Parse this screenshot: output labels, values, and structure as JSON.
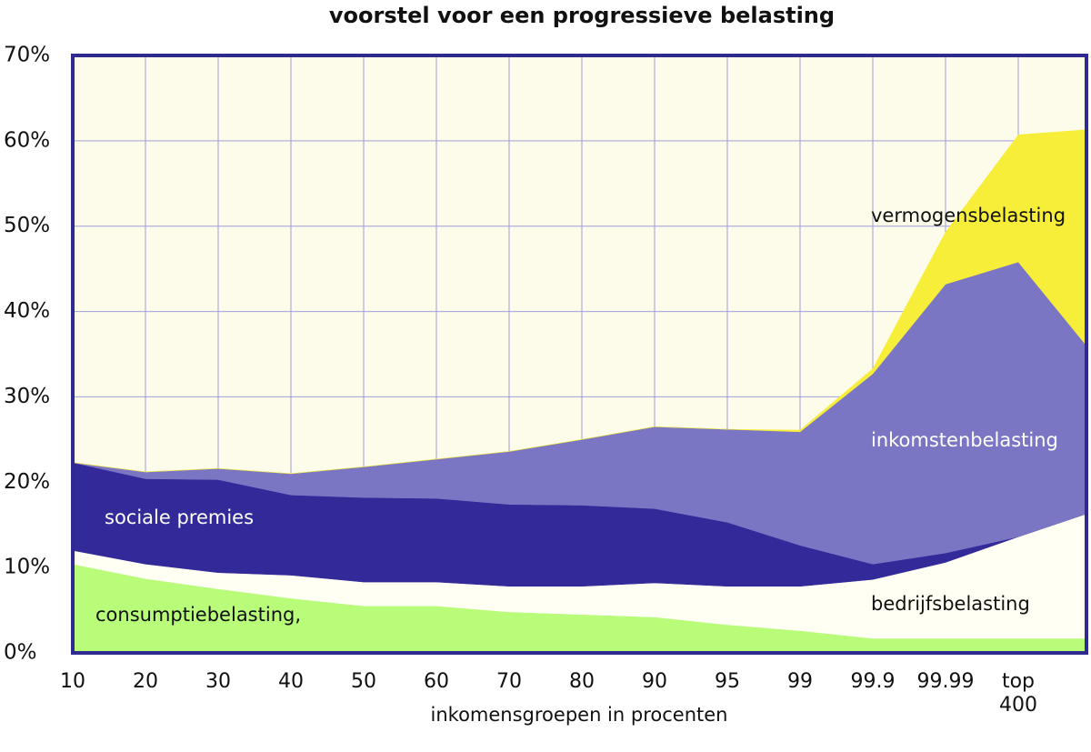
{
  "chart_data": {
    "type": "stacked_area",
    "title": "voorstel voor een progressieve belasting",
    "xlabel": "inkomensgroepen in procenten",
    "categories": [
      "10",
      "20",
      "30",
      "40",
      "50",
      "60",
      "70",
      "80",
      "90",
      "95",
      "99",
      "99.9",
      "99.99",
      "top 400",
      null
    ],
    "series": [
      {
        "name": "consumptiebelasting,",
        "color": "#b8fc7a",
        "values": [
          10.4,
          8.7,
          7.5,
          6.4,
          5.5,
          5.5,
          4.8,
          4.5,
          4.2,
          3.3,
          2.6,
          1.7,
          1.7,
          1.7,
          1.7
        ]
      },
      {
        "name": "bedrijfsbelasting",
        "color": "#fffff3",
        "values": [
          1.6,
          1.7,
          1.9,
          2.7,
          2.8,
          2.8,
          3.0,
          3.3,
          4.0,
          4.5,
          5.2,
          6.9,
          8.9,
          11.9,
          14.6
        ]
      },
      {
        "name": "sociale premies",
        "color": "#332a99",
        "values": [
          10.3,
          10.0,
          10.9,
          9.4,
          9.9,
          9.8,
          9.6,
          9.5,
          8.7,
          7.5,
          4.8,
          1.8,
          1.1,
          0,
          0
        ]
      },
      {
        "name": "inkomstenbelasting",
        "color": "#7b76c4",
        "values": [
          0,
          0.8,
          1.3,
          2.5,
          3.6,
          4.6,
          6.2,
          7.7,
          9.6,
          10.9,
          13.3,
          22.3,
          31.5,
          32.2,
          19.7
        ]
      },
      {
        "name": "vermogensbelasting",
        "color": "#f7ee3a",
        "values": [
          0,
          0,
          0,
          0,
          0,
          0,
          0,
          0,
          0,
          0,
          0.2,
          0.6,
          6.1,
          14.9,
          25.3
        ]
      }
    ],
    "ylim": [
      0,
      70
    ],
    "yticks": [
      {
        "value": 0,
        "label": "0%"
      },
      {
        "value": 10,
        "label": "10%"
      },
      {
        "value": 20,
        "label": "20%"
      },
      {
        "value": 30,
        "label": "30%"
      },
      {
        "value": 40,
        "label": "40%"
      },
      {
        "value": 50,
        "label": "50%"
      },
      {
        "value": 60,
        "label": "60%"
      },
      {
        "value": 70,
        "label": "70%"
      }
    ],
    "grid": true
  }
}
